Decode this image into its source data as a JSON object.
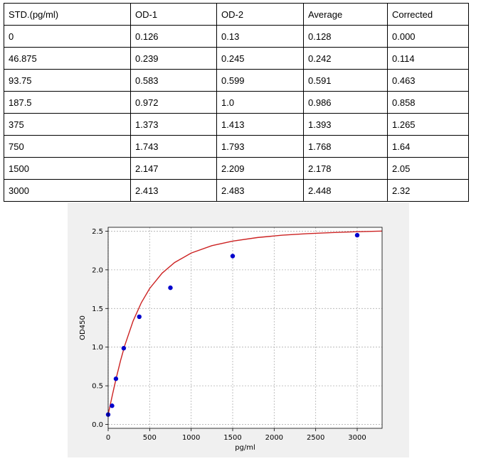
{
  "table": {
    "headers": [
      "STD.(pg/ml)",
      "OD-1",
      "OD-2",
      "Average",
      "Corrected"
    ],
    "rows": [
      [
        "0",
        "0.126",
        "0.13",
        "0.128",
        "0.000"
      ],
      [
        "46.875",
        "0.239",
        "0.245",
        "0.242",
        "0.114"
      ],
      [
        "93.75",
        "0.583",
        "0.599",
        "0.591",
        "0.463"
      ],
      [
        "187.5",
        "0.972",
        "1.0",
        "0.986",
        "0.858"
      ],
      [
        "375",
        "1.373",
        "1.413",
        "1.393",
        "1.265"
      ],
      [
        "750",
        "1.743",
        "1.793",
        "1.768",
        "1.64"
      ],
      [
        "1500",
        "2.147",
        "2.209",
        "2.178",
        "2.05"
      ],
      [
        "3000",
        "2.413",
        "2.483",
        "2.448",
        "2.32"
      ]
    ]
  },
  "chart_data": {
    "type": "scatter",
    "title": "",
    "xlabel": "pg/ml",
    "ylabel": "OD450",
    "xlim": [
      0,
      3300
    ],
    "ylim": [
      -0.05,
      2.55
    ],
    "xticks": [
      0,
      500,
      1000,
      1500,
      2000,
      2500,
      3000
    ],
    "yticks": [
      0.0,
      0.5,
      1.0,
      1.5,
      2.0,
      2.5
    ],
    "grid": true,
    "series": [
      {
        "type": "scatter",
        "color": "#0000cc",
        "x": [
          0,
          46.875,
          93.75,
          187.5,
          375,
          750,
          1500,
          3000
        ],
        "y": [
          0.128,
          0.242,
          0.591,
          0.986,
          1.393,
          1.768,
          2.178,
          2.448
        ]
      },
      {
        "type": "line",
        "color": "#cc2222",
        "x": [
          0,
          25,
          50,
          75,
          100,
          150,
          200,
          300,
          400,
          500,
          650,
          800,
          1000,
          1250,
          1500,
          1800,
          2100,
          2400,
          2700,
          3000,
          3300
        ],
        "y": [
          0.128,
          0.253,
          0.376,
          0.496,
          0.612,
          0.829,
          1.021,
          1.337,
          1.576,
          1.759,
          1.957,
          2.094,
          2.217,
          2.313,
          2.371,
          2.418,
          2.448,
          2.468,
          2.482,
          2.493,
          2.501
        ]
      }
    ]
  }
}
